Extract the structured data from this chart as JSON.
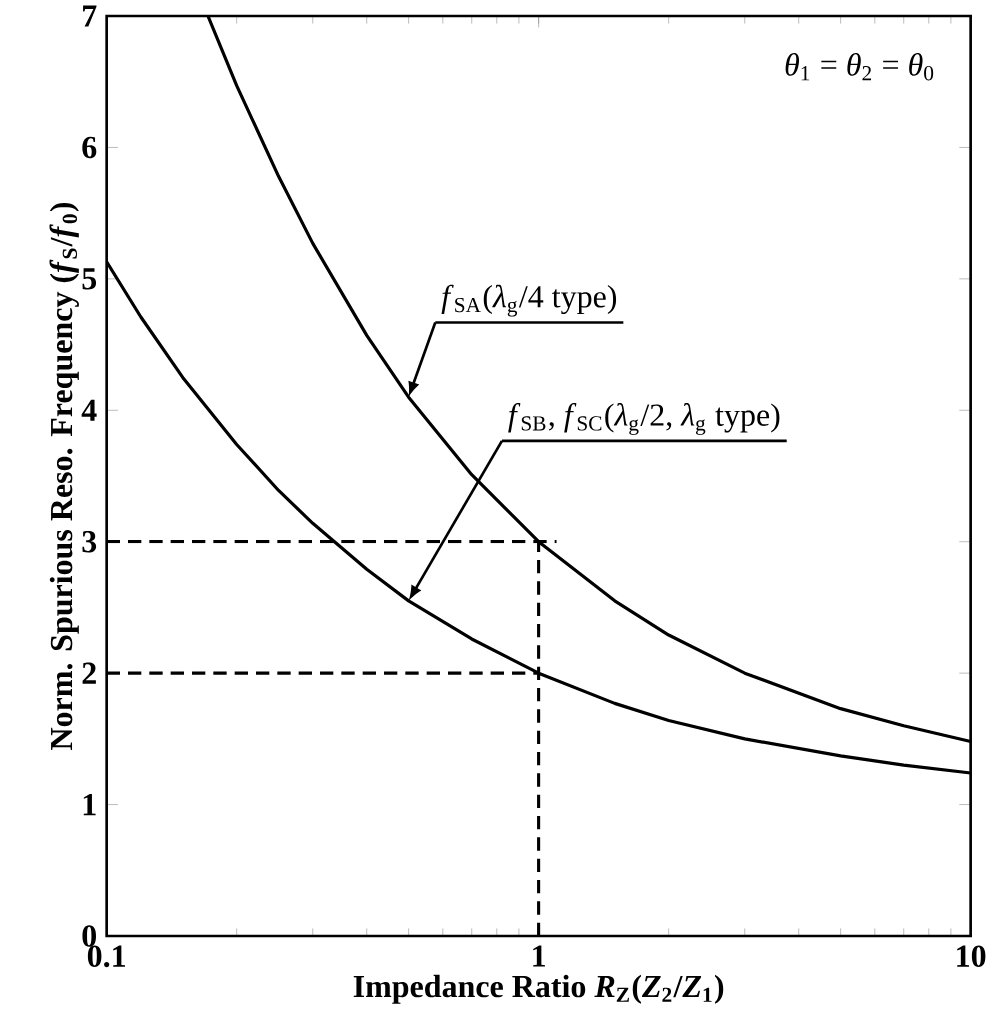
{
  "chart_data": {
    "type": "line",
    "xlabel": "Impedance Ratio  *R*$_{Z}$(*Z*$_{2}$/*Z*$_{1}$)",
    "ylabel": "Norm. Spurious Reso. Frequency  (*f*$_{S}$/*f*$_{0}$)",
    "log": "x",
    "xlim": [
      0.1,
      10
    ],
    "ylim": [
      0,
      7
    ],
    "xticks": [
      0.1,
      1,
      10
    ],
    "yticks": [
      0,
      1,
      2,
      3,
      4,
      5,
      6,
      7
    ],
    "grid": false,
    "marker": "none",
    "annotations": [
      "*θ*$_{1}$ = *θ*$_{2}$ = *θ*$_{0}$",
      {
        "text": "*f*$_{SA}$(*λ*$_{g}$/4 type)",
        "x": 0.5,
        "y": 4.1
      },
      "*f*$_{SB}$, *f*$_{SC}$(*λ*$_{g}$/2, *λ*$_{g}$ type)"
    ],
    "series": [
      {
        "color": "#000000",
        "line_style": "solid",
        "x": [
          0.1716,
          0.2,
          0.25,
          0.3,
          0.4,
          0.5,
          0.7,
          1,
          1.5,
          2,
          3,
          5,
          7,
          10
        ],
        "values": [
          7.0,
          6.47,
          5.78,
          5.27,
          4.57,
          4.1,
          3.51,
          3.0,
          2.55,
          2.29,
          2.0,
          1.73,
          1.6,
          1.48
        ]
      },
      {
        "color": "#000000",
        "line_style": "solid",
        "x": [
          0.1,
          0.12,
          0.15,
          0.2,
          0.25,
          0.3,
          0.4,
          0.5,
          0.7,
          1,
          1.5,
          2,
          3,
          5,
          7,
          10
        ],
        "values": [
          5.13,
          4.71,
          4.25,
          3.74,
          3.39,
          3.14,
          2.79,
          2.55,
          2.26,
          2.0,
          1.77,
          1.64,
          1.5,
          1.37,
          1.3,
          1.24
        ]
      },
      {
        "color": "#000000",
        "line_style": "dashed",
        "x": [
          0.1,
          1.1
        ],
        "values": [
          3,
          3
        ]
      },
      {
        "color": "#000000",
        "line_style": "dashed",
        "x": [
          0.1,
          1
        ],
        "values": [
          2,
          2
        ]
      },
      {
        "color": "#000000",
        "line_style": "dashed",
        "x": [
          1,
          1
        ],
        "values": [
          0,
          3
        ]
      }
    ]
  }
}
